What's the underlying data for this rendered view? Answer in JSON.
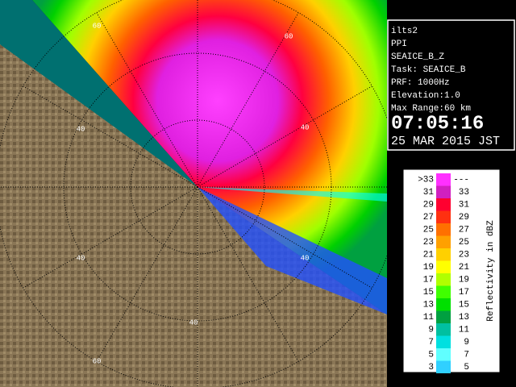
{
  "info": {
    "lines": [
      "ilts2",
      "PPI",
      "SEAICE_B_Z",
      "Task: SEAICE_B",
      "PRF: 1000Hz",
      "Elevation:1.0",
      "Max Range:60 km"
    ],
    "time": "07:05:16",
    "date": "25 MAR 2015 JST"
  },
  "legend": {
    "title": "Reflectivity in dBZ",
    "rows": [
      {
        "low": ">33",
        "high": "---",
        "color": "#ff30ff"
      },
      {
        "low": "31",
        "high": "33",
        "color": "#d020c0"
      },
      {
        "low": "29",
        "high": "31",
        "color": "#ff0030"
      },
      {
        "low": "27",
        "high": "29",
        "color": "#ff3010"
      },
      {
        "low": "25",
        "high": "27",
        "color": "#ff7000"
      },
      {
        "low": "23",
        "high": "25",
        "color": "#ffa000"
      },
      {
        "low": "21",
        "high": "23",
        "color": "#ffd000"
      },
      {
        "low": "19",
        "high": "21",
        "color": "#ffff00"
      },
      {
        "low": "17",
        "high": "19",
        "color": "#b0ff00"
      },
      {
        "low": "15",
        "high": "17",
        "color": "#40ff00"
      },
      {
        "low": "13",
        "high": "15",
        "color": "#00e000"
      },
      {
        "low": "11",
        "high": "13",
        "color": "#00a040"
      },
      {
        "low": "9",
        "high": "11",
        "color": "#00c0a0"
      },
      {
        "low": "7",
        "high": "9",
        "color": "#00e0e0"
      },
      {
        "low": "5",
        "high": "7",
        "color": "#60ffff"
      },
      {
        "low": "3",
        "high": "5",
        "color": "#30d0ff"
      }
    ]
  },
  "map": {
    "ring_labels": [
      "60",
      "60",
      "40",
      "40",
      "40",
      "40",
      "40",
      "60"
    ]
  }
}
